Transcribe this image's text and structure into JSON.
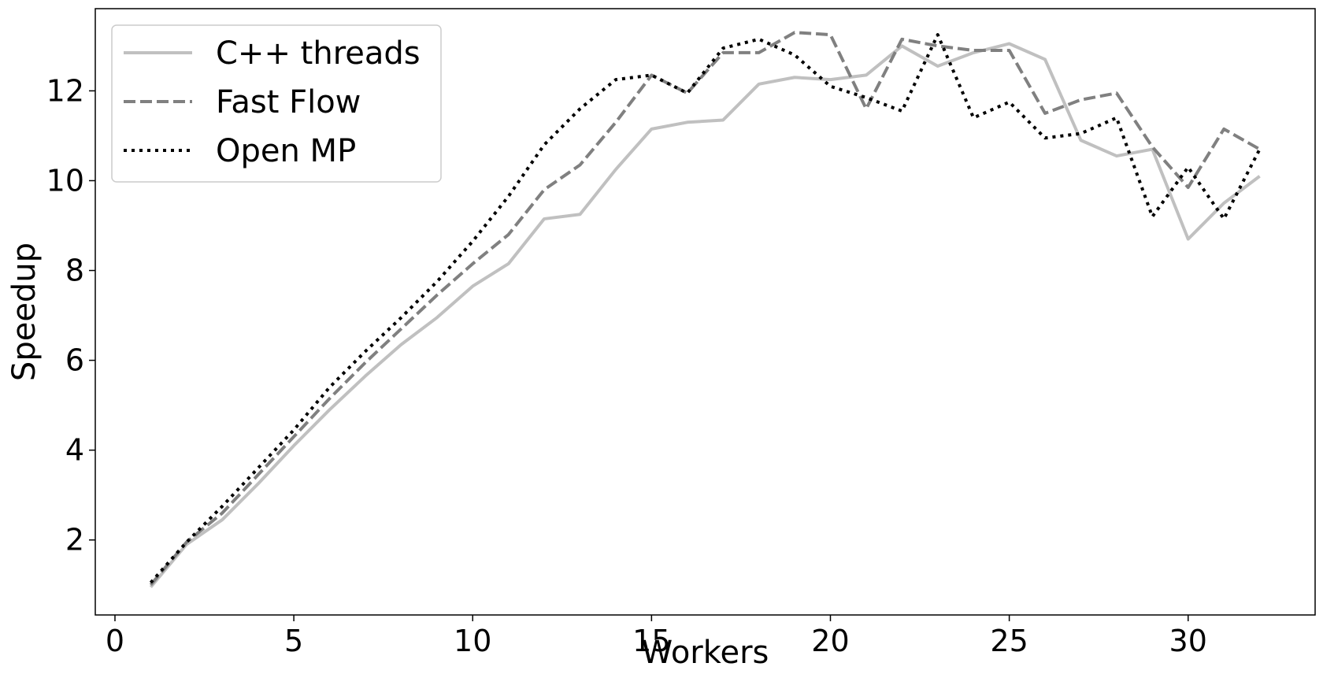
{
  "chart_data": {
    "type": "line",
    "xlabel": "Workers",
    "ylabel": "Speedup",
    "xlim": [
      -0.55,
      33.55
    ],
    "ylim": [
      0.33,
      13.83
    ],
    "xticks": [
      0,
      5,
      10,
      15,
      20,
      25,
      30
    ],
    "yticks": [
      2,
      4,
      6,
      8,
      10,
      12
    ],
    "grid": false,
    "legend_position": "top-left",
    "x": [
      1,
      2,
      3,
      4,
      5,
      6,
      7,
      8,
      9,
      10,
      11,
      12,
      13,
      14,
      15,
      16,
      17,
      18,
      19,
      20,
      21,
      22,
      23,
      24,
      25,
      26,
      27,
      28,
      29,
      30,
      31,
      32
    ],
    "series": [
      {
        "name": "C++ threads",
        "style": "solid",
        "color": "#c0c0c0",
        "values": [
          0.95,
          1.9,
          2.45,
          3.25,
          4.1,
          4.9,
          5.65,
          6.35,
          6.95,
          7.65,
          8.15,
          9.15,
          9.25,
          10.25,
          11.15,
          11.3,
          11.35,
          12.15,
          12.3,
          12.25,
          12.35,
          13.0,
          12.55,
          12.85,
          13.05,
          12.7,
          10.9,
          10.55,
          10.7,
          8.7,
          9.5,
          10.1
        ]
      },
      {
        "name": "Fast Flow",
        "style": "dashed",
        "color": "#808080",
        "values": [
          1.0,
          1.95,
          2.6,
          3.45,
          4.3,
          5.15,
          5.95,
          6.7,
          7.45,
          8.15,
          8.8,
          9.8,
          10.35,
          11.3,
          12.35,
          11.95,
          12.85,
          12.85,
          13.3,
          13.25,
          11.6,
          13.15,
          13.0,
          12.9,
          12.9,
          11.5,
          11.8,
          11.95,
          10.75,
          9.85,
          11.15,
          10.7
        ]
      },
      {
        "name": "Open MP",
        "style": "dotted",
        "color": "#000000",
        "values": [
          1.05,
          1.95,
          2.75,
          3.6,
          4.45,
          5.4,
          6.2,
          6.95,
          7.75,
          8.65,
          9.65,
          10.8,
          11.6,
          12.25,
          12.35,
          11.95,
          12.95,
          13.15,
          12.8,
          12.1,
          11.85,
          11.55,
          13.25,
          11.4,
          11.75,
          10.95,
          11.05,
          11.4,
          9.2,
          10.3,
          9.15,
          10.7
        ]
      }
    ]
  }
}
